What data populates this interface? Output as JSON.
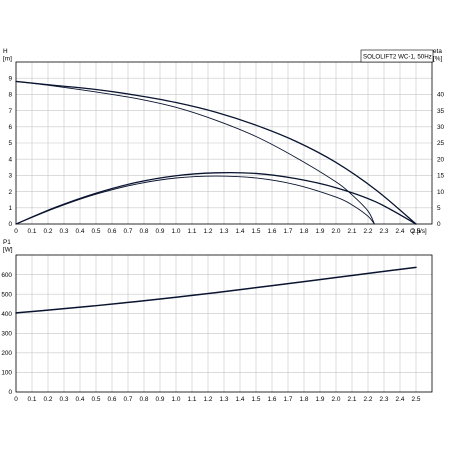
{
  "legend_label": "SOLOLIFT2 WC-1, 50Hz",
  "chart_data": [
    {
      "type": "line",
      "x_ticks": [
        "0",
        "0.1",
        "0.2",
        "0.3",
        "0.4",
        "0.5",
        "0.6",
        "0.7",
        "0.8",
        "0.9",
        "1.0",
        "1.1",
        "1.2",
        "1.3",
        "1.4",
        "1.5",
        "1.6",
        "1.7",
        "1.8",
        "1.9",
        "2.0",
        "2.1",
        "2.2",
        "2.3",
        "2.4",
        "2.5"
      ],
      "xlabel": "Q [l/s]",
      "xlim": [
        0,
        2.6
      ],
      "ylabel_left": "H\n[m]",
      "y_left_ticks": [
        "0",
        "1",
        "2",
        "3",
        "4",
        "5",
        "6",
        "7",
        "8",
        "9"
      ],
      "ylim_left": [
        0,
        10
      ],
      "ylabel_right": "eta\n[%]",
      "y_right_ticks": [
        "0",
        "5",
        "10",
        "15",
        "20",
        "25",
        "30",
        "35",
        "40"
      ],
      "ylim_right": [
        0,
        50
      ],
      "grid": true,
      "series": [
        {
          "axis": "left",
          "x": [
            0,
            0.25,
            0.5,
            0.75,
            1.0,
            1.25,
            1.5,
            1.75,
            2.0,
            2.25,
            2.5
          ],
          "y": [
            8.8,
            8.55,
            8.3,
            7.95,
            7.5,
            6.9,
            6.1,
            5.1,
            3.8,
            2.1,
            0
          ]
        },
        {
          "axis": "left",
          "x": [
            0,
            0.25,
            0.5,
            0.75,
            1.0,
            1.25,
            1.5,
            1.75,
            2.0,
            2.1,
            2.2,
            2.24
          ],
          "y": [
            8.8,
            8.5,
            8.15,
            7.75,
            7.2,
            6.4,
            5.4,
            4.1,
            2.6,
            1.8,
            0.8,
            0
          ]
        },
        {
          "axis": "right",
          "x": [
            0,
            0.25,
            0.5,
            0.75,
            1.0,
            1.25,
            1.5,
            1.75,
            2.0,
            2.25,
            2.5
          ],
          "y": [
            0,
            5.2,
            9.5,
            12.8,
            14.9,
            15.8,
            15.6,
            14.0,
            11.2,
            6.8,
            0
          ]
        },
        {
          "axis": "right",
          "x": [
            0,
            0.25,
            0.5,
            0.75,
            1.0,
            1.25,
            1.5,
            1.75,
            2.0,
            2.1,
            2.2,
            2.24
          ],
          "y": [
            0,
            5.0,
            9.2,
            12.3,
            14.2,
            14.8,
            14.2,
            12.1,
            8.3,
            5.9,
            2.4,
            0
          ]
        }
      ]
    },
    {
      "type": "line",
      "x_ticks": [
        "0",
        "0.1",
        "0.2",
        "0.3",
        "0.4",
        "0.5",
        "0.6",
        "0.7",
        "0.8",
        "0.9",
        "1.0",
        "1.1",
        "1.2",
        "1.3",
        "1.4",
        "1.5",
        "1.6",
        "1.7",
        "1.8",
        "1.9",
        "2.0",
        "2.1",
        "2.2",
        "2.3",
        "2.4",
        "2.5"
      ],
      "xlim": [
        0,
        2.6
      ],
      "ylabel": "P1\n[W]",
      "y_ticks": [
        "0",
        "100",
        "200",
        "300",
        "400",
        "500",
        "600"
      ],
      "ylim": [
        0,
        700
      ],
      "grid": true,
      "series": [
        {
          "x": [
            0,
            0.25,
            0.5,
            0.75,
            1.0,
            1.25,
            1.5,
            1.75,
            2.0,
            2.25,
            2.5
          ],
          "y": [
            404,
            422,
            441,
            462,
            484,
            508,
            533,
            559,
            585,
            611,
            637
          ]
        }
      ]
    }
  ],
  "colors": {
    "curve": "#0a1430",
    "grid": "#c8c8c8"
  }
}
